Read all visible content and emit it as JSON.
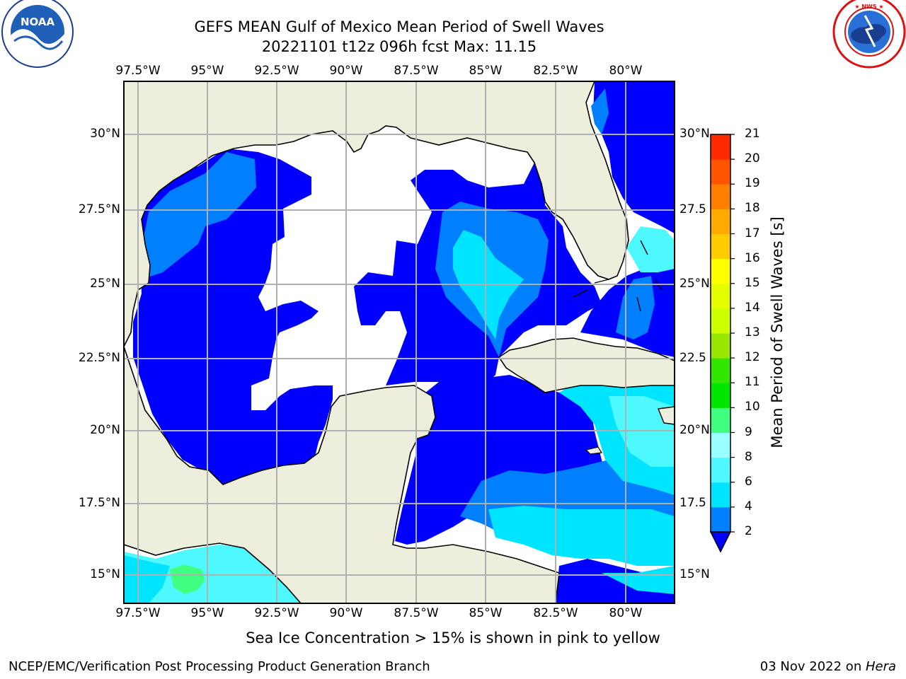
{
  "title_line1": "GEFS MEAN Gulf of Mexico Mean Period of Swell Waves",
  "title_line2": "20221101 t12z 096h fcst   Max: 11.15",
  "lon_labels": [
    "97.5°W",
    "95°W",
    "92.5°W",
    "90°W",
    "87.5°W",
    "85°W",
    "82.5°W",
    "80°W"
  ],
  "lat_labels_left": [
    "30°N",
    "27.5°N",
    "25°N",
    "22.5°N",
    "20°N",
    "17.5°N",
    "15°N"
  ],
  "lat_labels_right": [
    "30°N",
    "27.5",
    "25°N",
    "22.5",
    "20°N",
    "17.5",
    "15°N"
  ],
  "colorbar": {
    "title": "Mean Period of Swell Waves [s]",
    "ticks": [
      "2",
      "4",
      "6",
      "8",
      "9",
      "10",
      "11",
      "12",
      "13",
      "14",
      "15",
      "16",
      "17",
      "18",
      "19",
      "20",
      "21"
    ],
    "colors": [
      "#0000ff",
      "#0080ff",
      "#00e5ff",
      "#4df9ff",
      "#99ffff",
      "#40ff80",
      "#00e600",
      "#33e600",
      "#99e600",
      "#ccff00",
      "#e6ff00",
      "#ffff00",
      "#ffcc00",
      "#ffaa00",
      "#ff8000",
      "#ff5500",
      "#ff2a00",
      "#ff0000"
    ],
    "extend": "min"
  },
  "footnote": "Sea Ice Concentration > 15% is shown in pink to yellow",
  "credit": "NCEP/EMC/Verification Post Processing Product Generation Branch",
  "date_text": "03 Nov 2022 on ",
  "date_host": "Hera",
  "logos": {
    "noaa": "NOAA",
    "noaa_ring": "NATIONAL OCEANIC AND ATMOSPHERIC ADMINISTRATION · U.S. DEPARTMENT OF COMMERCE",
    "nws_ring": "NATIONAL WEATHER SERVICE"
  },
  "colors": {
    "land": "#eeeedd",
    "ocean_missing": "#ffffff",
    "grid": "#b0b0b0"
  }
}
